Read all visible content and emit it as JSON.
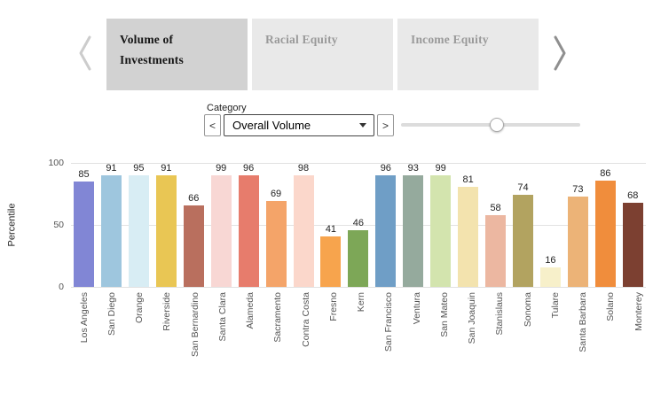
{
  "carousel": {
    "tabs": [
      {
        "label": "Volume of Investments",
        "active": true
      },
      {
        "label": "Racial Equity",
        "active": false
      },
      {
        "label": "Income Equity",
        "active": false
      }
    ]
  },
  "controls": {
    "category_label": "Category",
    "prev_label": "<",
    "next_label": ">",
    "dropdown_value": "Overall Volume",
    "slider_position_pct": 53
  },
  "chart_data": {
    "type": "bar",
    "title": "",
    "xlabel": "",
    "ylabel": "Percentile",
    "ylim": [
      0,
      100
    ],
    "yticks": [
      0,
      50,
      100
    ],
    "grid": true,
    "value_labels": true,
    "categories": [
      "Los Angeles",
      "San Diego",
      "Orange",
      "Riverside",
      "San Bernardino",
      "Santa Clara",
      "Alameda",
      "Sacramento",
      "Contra Costa",
      "Fresno",
      "Kern",
      "San Francisco",
      "Ventura",
      "San Mateo",
      "San Joaquin",
      "Stanislaus",
      "Sonoma",
      "Tulare",
      "Santa Barbara",
      "Solano",
      "Monterey"
    ],
    "values": [
      85,
      91,
      95,
      91,
      66,
      99,
      96,
      69,
      98,
      41,
      46,
      96,
      93,
      99,
      81,
      58,
      74,
      16,
      73,
      86,
      68
    ],
    "colors": [
      "#8186d5",
      "#9ec6de",
      "#d8edf4",
      "#e9c654",
      "#b96f5e",
      "#f8d7d4",
      "#e77c6c",
      "#f4a469",
      "#fbd7cb",
      "#f7a44d",
      "#7da757",
      "#6f9ec6",
      "#95aa9d",
      "#d3e4ae",
      "#f3e3ae",
      "#ecb7a1",
      "#b2a360",
      "#f7f0ca",
      "#ecb377",
      "#f08d3c",
      "#7c4031"
    ]
  }
}
